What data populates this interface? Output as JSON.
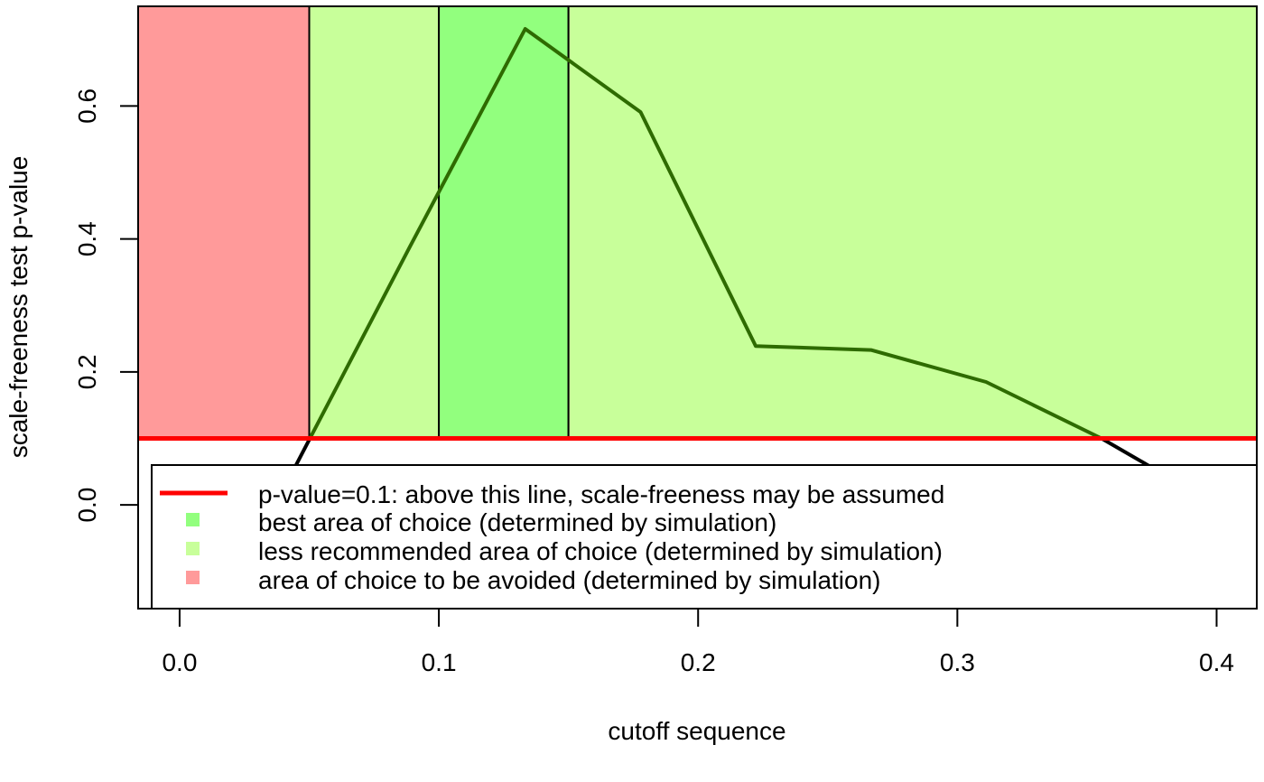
{
  "chart_data": {
    "type": "line",
    "title": "",
    "xlabel": "cutoff sequence",
    "ylabel": "scale-freeness test p-value",
    "xlim": [
      -0.016,
      0.4155
    ],
    "ylim": [
      -0.156,
      0.75
    ],
    "x_ticks": [
      0.0,
      0.1,
      0.2,
      0.3,
      0.4
    ],
    "x_tick_labels": [
      "0.0",
      "0.1",
      "0.2",
      "0.3",
      "0.4"
    ],
    "y_ticks": [
      0.0,
      0.2,
      0.4,
      0.6
    ],
    "y_tick_labels": [
      "0.0",
      "0.2",
      "0.4",
      "0.6"
    ],
    "grid": false,
    "series": [
      {
        "color": "#2e6b00",
        "below_threshold_color": "#000000",
        "x": [
          0.0,
          0.0444,
          0.0889,
          0.1333,
          0.1778,
          0.2222,
          0.2667,
          0.3111,
          0.3556,
          0.4
        ],
        "y": [
          -0.07,
          0.056,
          0.389,
          0.716,
          0.591,
          0.239,
          0.233,
          0.185,
          0.1,
          0.0
        ]
      }
    ],
    "threshold": {
      "y": 0.1,
      "color": "#ff0000"
    },
    "regions": [
      {
        "x0": -0.016,
        "x1": 0.05,
        "kind": "avoid",
        "color": "#ff9a9a"
      },
      {
        "x0": 0.05,
        "x1": 0.1,
        "kind": "less",
        "color": "#c8ff9a"
      },
      {
        "x0": 0.1,
        "x1": 0.15,
        "kind": "best",
        "color": "#92ff7e"
      },
      {
        "x0": 0.15,
        "x1": 0.4155,
        "kind": "less",
        "color": "#c8ff9a"
      }
    ],
    "legend": {
      "placement": "bottom",
      "entries": [
        {
          "label": "p-value=0.1:  above this line, scale-freeness may be assumed",
          "symbol": "line",
          "color": "#ff0000"
        },
        {
          "label": "best area of choice (determined by simulation)",
          "symbol": "square",
          "color": "#92ff7e"
        },
        {
          "label": "less recommended area of choice (determined by simulation)",
          "symbol": "square",
          "color": "#c8ff9a"
        },
        {
          "label": "area of choice to be avoided (determined by simulation)",
          "symbol": "square",
          "color": "#ff9a9a"
        }
      ]
    }
  }
}
